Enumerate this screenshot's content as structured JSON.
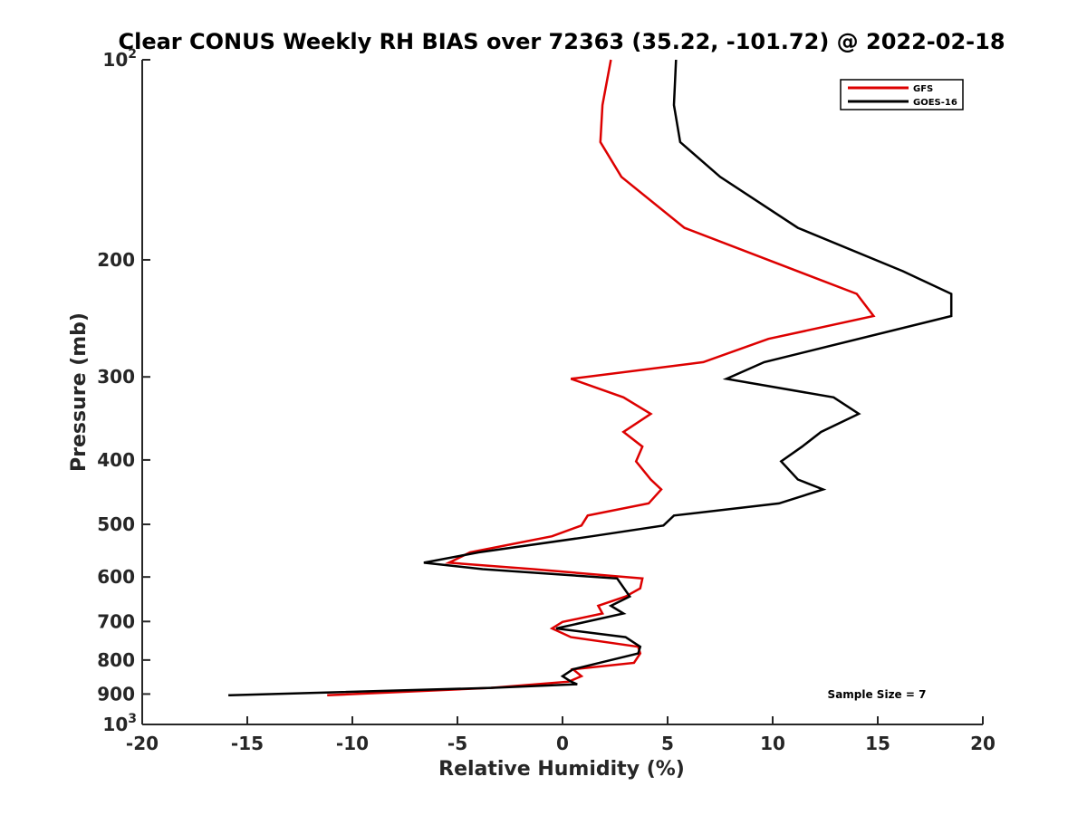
{
  "chart_data": {
    "type": "line",
    "title": "Clear CONUS Weekly RH BIAS over 72363 (35.22, -101.72) @ 2022-02-18",
    "xlabel": "Relative Humidity (%)",
    "ylabel": "Pressure (mb)",
    "xlim": [
      -20,
      20
    ],
    "ylim": [
      100,
      1000
    ],
    "yscale": "log",
    "y_reversed": true,
    "grid": false,
    "legend_location": "top-right",
    "x_ticks": [
      "-20",
      "-15",
      "-10",
      "-5",
      "0",
      "5",
      "10",
      "15",
      "20"
    ],
    "x_tick_values": [
      -20,
      -15,
      -10,
      -5,
      0,
      5,
      10,
      15,
      20
    ],
    "y_ticks": [
      {
        "value": 100,
        "base": "10",
        "exp": "2"
      },
      {
        "value": 200,
        "label": "200"
      },
      {
        "value": 300,
        "label": "300"
      },
      {
        "value": 400,
        "label": "400"
      },
      {
        "value": 500,
        "label": "500"
      },
      {
        "value": 600,
        "label": "600"
      },
      {
        "value": 700,
        "label": "700"
      },
      {
        "value": 800,
        "label": "800"
      },
      {
        "value": 900,
        "label": "900"
      },
      {
        "value": 1000,
        "base": "10",
        "exp": "3"
      }
    ],
    "annotation": "Sample Size = 7",
    "series": [
      {
        "name": "GFS",
        "color": "#dd0000",
        "points": [
          [
            2.3,
            100
          ],
          [
            1.9,
            117
          ],
          [
            1.8,
            133
          ],
          [
            2.8,
            150
          ],
          [
            5.8,
            179
          ],
          [
            14.0,
            225
          ],
          [
            14.8,
            243
          ],
          [
            9.8,
            263
          ],
          [
            6.7,
            285
          ],
          [
            0.4,
            302
          ],
          [
            2.9,
            322
          ],
          [
            4.2,
            341
          ],
          [
            2.9,
            363
          ],
          [
            3.8,
            382
          ],
          [
            3.5,
            402
          ],
          [
            4.2,
            428
          ],
          [
            4.7,
            443
          ],
          [
            4.1,
            465
          ],
          [
            1.2,
            485
          ],
          [
            0.9,
            502
          ],
          [
            -0.5,
            521
          ],
          [
            -4.4,
            551
          ],
          [
            -5.4,
            571
          ],
          [
            -1.4,
            584
          ],
          [
            3.8,
            603
          ],
          [
            3.7,
            624
          ],
          [
            3.0,
            642
          ],
          [
            1.7,
            663
          ],
          [
            1.9,
            681
          ],
          [
            0.0,
            701
          ],
          [
            -0.5,
            717
          ],
          [
            0.4,
            739
          ],
          [
            3.6,
            764
          ],
          [
            3.7,
            782
          ],
          [
            3.4,
            808
          ],
          [
            0.5,
            826
          ],
          [
            0.9,
            846
          ],
          [
            0.3,
            862
          ],
          [
            -3.4,
            881
          ],
          [
            -11.2,
            904
          ]
        ]
      },
      {
        "name": "GOES-16",
        "color": "#000000",
        "points": [
          [
            5.4,
            100
          ],
          [
            5.3,
            117
          ],
          [
            5.6,
            133
          ],
          [
            7.5,
            150
          ],
          [
            11.2,
            179
          ],
          [
            16.2,
            208
          ],
          [
            18.5,
            225
          ],
          [
            18.5,
            243
          ],
          [
            9.6,
            285
          ],
          [
            7.8,
            302
          ],
          [
            12.9,
            322
          ],
          [
            14.1,
            341
          ],
          [
            12.3,
            363
          ],
          [
            11.4,
            382
          ],
          [
            10.4,
            402
          ],
          [
            11.2,
            428
          ],
          [
            12.4,
            443
          ],
          [
            10.3,
            465
          ],
          [
            5.3,
            485
          ],
          [
            4.8,
            502
          ],
          [
            1.4,
            521
          ],
          [
            -4.0,
            551
          ],
          [
            -6.6,
            571
          ],
          [
            -3.8,
            584
          ],
          [
            2.6,
            603
          ],
          [
            3.2,
            642
          ],
          [
            2.3,
            663
          ],
          [
            2.9,
            681
          ],
          [
            -0.3,
            717
          ],
          [
            3.0,
            739
          ],
          [
            3.7,
            764
          ],
          [
            3.6,
            782
          ],
          [
            0.5,
            826
          ],
          [
            0.0,
            846
          ],
          [
            0.4,
            862
          ],
          [
            0.7,
            870
          ],
          [
            -3.4,
            881
          ],
          [
            -15.9,
            904
          ]
        ]
      }
    ]
  }
}
